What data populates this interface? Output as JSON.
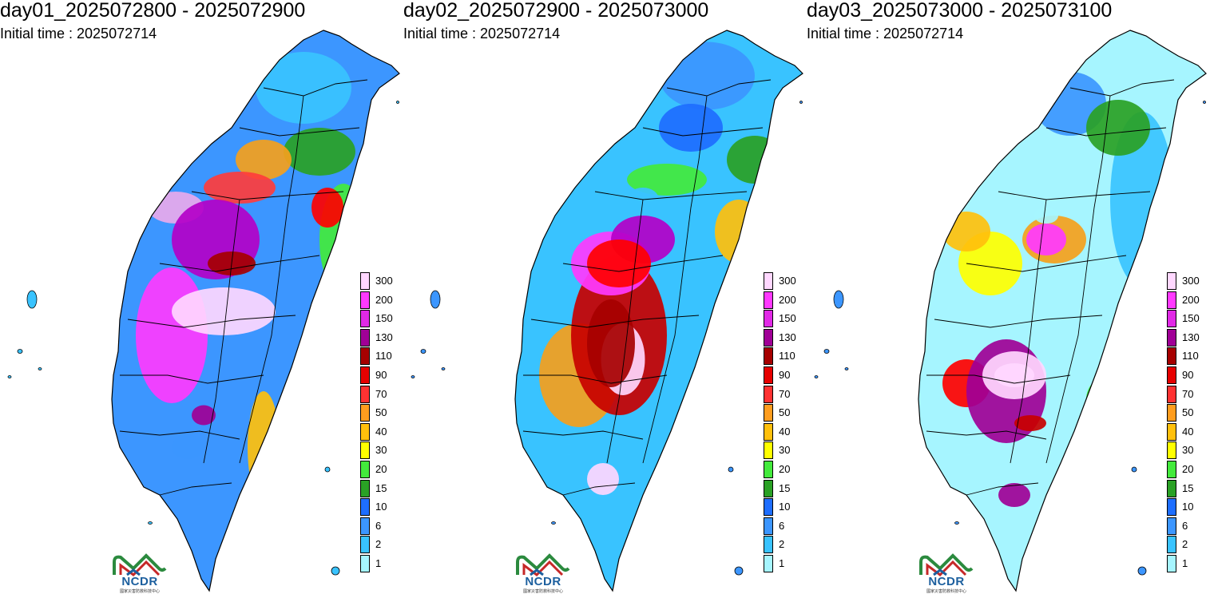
{
  "panels": [
    {
      "title": "day01_2025072800 - 2025072900",
      "subtitle": "Initial time : 2025072714",
      "scheme": [
        "#3c96ff",
        "#39c3ff",
        "#2aa125",
        "#43ea3c",
        "#ffff00",
        "#ffc00c",
        "#f5a01c",
        "#ff0000",
        "#ff3c3c",
        "#e9a9ec",
        "#ff39ff",
        "#b400c8",
        "#ffd7ff",
        "#a60000",
        "#a00096"
      ]
    },
    {
      "title": "day02_2025072900 - 2025073000",
      "subtitle": "Initial time : 2025072714",
      "scheme": [
        "#39c3ff",
        "#3c96ff",
        "#1e6eff",
        "#2aa125",
        "#43ea3c",
        "#ffc00c",
        "#f5a01c",
        "#ff0000",
        "#c80000",
        "#ff39ff",
        "#b400c8",
        "#ffd7ff",
        "#ffd7ff",
        "#a60000",
        "#ff0000"
      ]
    },
    {
      "title": "day03_2025073000 - 2025073100",
      "subtitle": "Initial time : 2025072714",
      "scheme": [
        "#a6f5ff",
        "#3c96ff",
        "#39c3ff",
        "#2aa125",
        "#43ea3c",
        "#ffff00",
        "#ffc00c",
        "#f5a01c",
        "#ff0000",
        "#a00096",
        "#ff39ff",
        "#ffd7ff",
        "#ffd7ff",
        "#c80000",
        "#a00096"
      ]
    }
  ],
  "legend": {
    "labels": [
      "300",
      "200",
      "150",
      "130",
      "110",
      "90",
      "70",
      "50",
      "40",
      "30",
      "20",
      "15",
      "10",
      "6",
      "2",
      "1"
    ],
    "colors": [
      "#ffd7ff",
      "#ff39ff",
      "#e129e6",
      "#a00096",
      "#a60000",
      "#e60000",
      "#ff3232",
      "#ff9d1e",
      "#ffc00c",
      "#ffff00",
      "#43ea3c",
      "#2aa125",
      "#1e6eff",
      "#3c96ff",
      "#39c3ff",
      "#a6f5ff"
    ]
  },
  "logo": {
    "name": "NCDR",
    "subtitle": "國家災害防救科技中心"
  }
}
